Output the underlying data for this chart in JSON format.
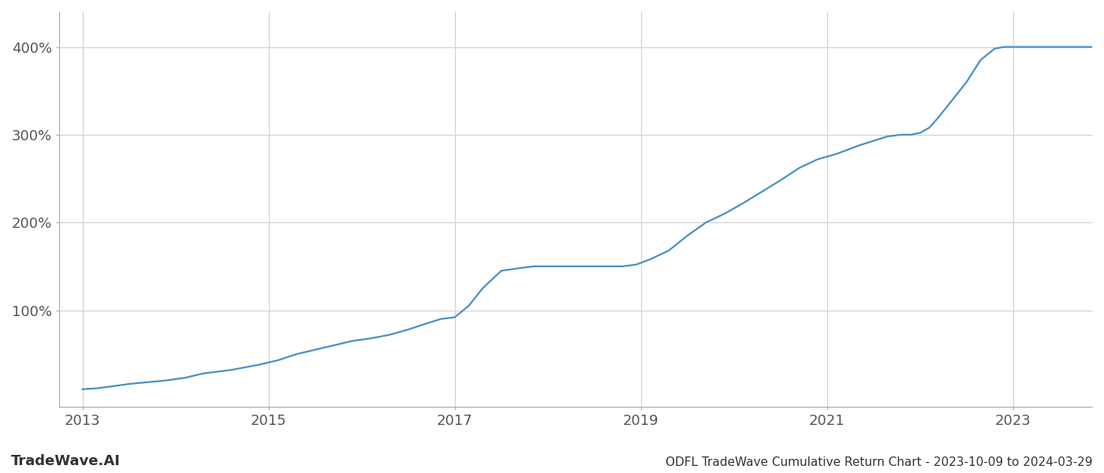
{
  "title": "ODFL TradeWave Cumulative Return Chart - 2023-10-09 to 2024-03-29",
  "watermark": "TradeWave.AI",
  "line_color": "#4a90c4",
  "background_color": "#ffffff",
  "grid_color": "#d0d0d0",
  "data_x": [
    2013.0,
    2013.15,
    2013.3,
    2013.5,
    2013.7,
    2013.9,
    2014.1,
    2014.3,
    2014.6,
    2014.9,
    2015.1,
    2015.3,
    2015.5,
    2015.7,
    2015.9,
    2016.1,
    2016.3,
    2016.5,
    2016.7,
    2016.85,
    2017.0,
    2017.15,
    2017.3,
    2017.5,
    2017.7,
    2017.85,
    2018.0,
    2018.2,
    2018.4,
    2018.6,
    2018.8,
    2018.95,
    2019.1,
    2019.3,
    2019.5,
    2019.7,
    2019.9,
    2020.1,
    2020.3,
    2020.5,
    2020.7,
    2020.9,
    2021.1,
    2021.2,
    2021.35,
    2021.5,
    2021.65,
    2021.8,
    2021.9,
    2022.0,
    2022.1,
    2022.2,
    2022.35,
    2022.5,
    2022.65,
    2022.8,
    2022.9,
    2023.0,
    2023.2,
    2023.5,
    2023.8,
    2024.0
  ],
  "data_y": [
    10,
    11,
    13,
    16,
    18,
    20,
    23,
    28,
    32,
    38,
    43,
    50,
    55,
    60,
    65,
    68,
    72,
    78,
    85,
    90,
    92,
    105,
    125,
    145,
    148,
    150,
    150,
    150,
    150,
    150,
    150,
    152,
    158,
    168,
    185,
    200,
    210,
    222,
    235,
    248,
    262,
    272,
    278,
    282,
    288,
    293,
    298,
    300,
    300,
    302,
    308,
    320,
    340,
    360,
    385,
    398,
    400,
    400,
    400,
    400,
    400,
    400
  ],
  "yticks": [
    100,
    200,
    300,
    400
  ],
  "ytick_labels": [
    "100%",
    "200%",
    "300%",
    "400%"
  ],
  "xtick_years": [
    2013,
    2015,
    2017,
    2019,
    2021,
    2023
  ],
  "xlim": [
    2012.75,
    2023.85
  ],
  "ylim": [
    -10,
    440
  ],
  "line_width": 1.6,
  "title_fontsize": 11,
  "tick_fontsize": 13,
  "watermark_fontsize": 13
}
